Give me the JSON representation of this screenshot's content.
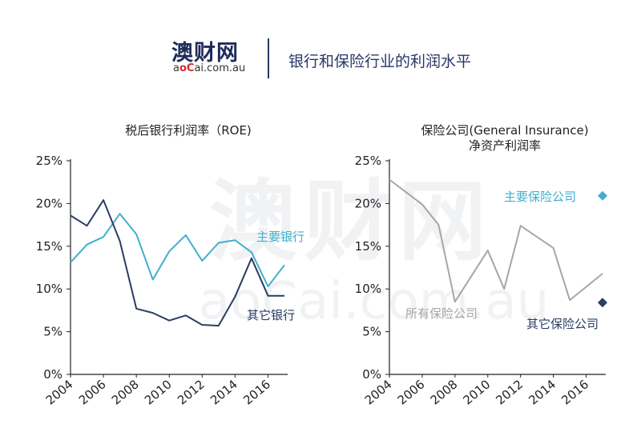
{
  "header": {
    "logo_cn": "澳财网",
    "logo_en_a": "a",
    "logo_en_o": "o",
    "logo_en_c": "C",
    "logo_en_rest": "ai.com.au",
    "title": "银行和保险行业的利润水平"
  },
  "watermark": {
    "cn": "澳财网",
    "en": "aoCai.com.au"
  },
  "colors": {
    "major": "#3fb0cc",
    "other": "#2b3d63",
    "all_insurance": "#a6a6a6",
    "axis": "#222222"
  },
  "chart_data": [
    {
      "type": "line",
      "title": "税后银行利润率（ROE)",
      "ylim": [
        0,
        25
      ],
      "yticks": [
        "0%",
        "5%",
        "10%",
        "15%",
        "20%",
        "25%"
      ],
      "xlim": [
        2004,
        2017
      ],
      "xticks": [
        "2004",
        "2006",
        "2008",
        "2010",
        "2012",
        "2014",
        "2016"
      ],
      "series": [
        {
          "name": "主要银行",
          "color": "#3fb0cc",
          "x": [
            2004,
            2005,
            2006,
            2007,
            2008,
            2009,
            2010,
            2011,
            2012,
            2013,
            2014,
            2015,
            2016,
            2017
          ],
          "values": [
            13.1,
            15.2,
            16.1,
            18.8,
            16.4,
            11.1,
            14.4,
            16.3,
            13.3,
            15.4,
            15.7,
            14.3,
            10.3,
            12.8
          ]
        },
        {
          "name": "其它银行",
          "color": "#2b3d63",
          "x": [
            2004,
            2005,
            2006,
            2007,
            2008,
            2009,
            2010,
            2011,
            2012,
            2013,
            2014,
            2015,
            2016,
            2017
          ],
          "values": [
            18.6,
            17.4,
            20.4,
            15.6,
            7.7,
            7.2,
            6.3,
            6.9,
            5.8,
            5.7,
            9.1,
            13.6,
            9.2,
            9.2
          ]
        }
      ]
    },
    {
      "type": "line",
      "title": "保险公司(General Insurance)",
      "subtitle": "净资产利润率",
      "ylim": [
        0,
        25
      ],
      "yticks": [
        "0%",
        "5%",
        "10%",
        "15%",
        "20%",
        "25%"
      ],
      "xlim": [
        2004,
        2017
      ],
      "xticks": [
        "2004",
        "2006",
        "2008",
        "2010",
        "2012",
        "2014",
        "2016"
      ],
      "series": [
        {
          "name": "所有保险公司",
          "color": "#a6a6a6",
          "x": [
            2004,
            2006,
            2007,
            2008,
            2010,
            2011,
            2012,
            2014,
            2015,
            2017
          ],
          "values": [
            22.8,
            19.9,
            17.5,
            8.5,
            14.5,
            10.0,
            17.4,
            14.8,
            8.7,
            11.8
          ]
        }
      ],
      "markers": [
        {
          "name": "主要保险公司",
          "x": 2017,
          "value": 20.9,
          "color": "#3fb0cc"
        },
        {
          "name": "其它保险公司",
          "x": 2017,
          "value": 8.4,
          "color": "#2b3d63"
        }
      ]
    }
  ]
}
